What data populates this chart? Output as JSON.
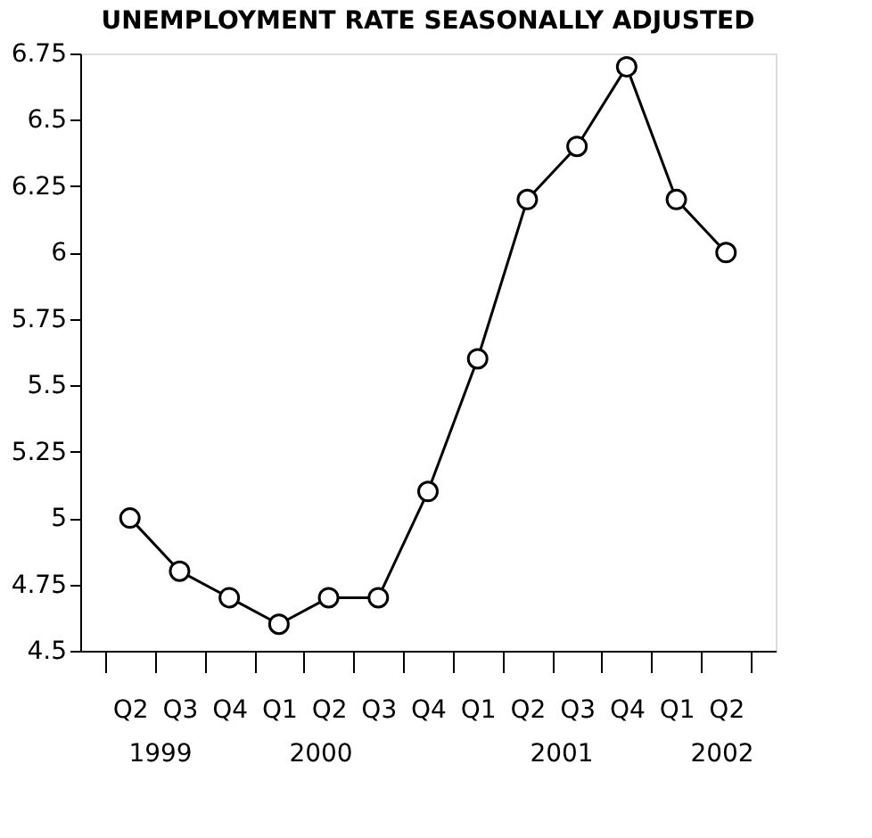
{
  "chart_data": {
    "type": "line",
    "title": "UNEMPLOYMENT RATE SEASONALLY ADJUSTED",
    "categories": [
      "Q2",
      "Q3",
      "Q4",
      "Q1",
      "Q2",
      "Q3",
      "Q4",
      "Q1",
      "Q2",
      "Q3",
      "Q4",
      "Q1",
      "Q2"
    ],
    "series": [
      {
        "color": "#000000",
        "values": [
          5.0,
          4.8,
          4.7,
          4.6,
          4.7,
          4.7,
          5.1,
          5.6,
          6.2,
          6.4,
          6.7,
          6.2,
          6.0
        ]
      }
    ],
    "annotations": [
      "1999",
      "2000",
      "2001",
      "2002"
    ],
    "ylim": [
      4.5,
      6.75
    ],
    "yticks": [
      4.5,
      4.75,
      5,
      5.25,
      5.5,
      5.75,
      6,
      6.25,
      6.5,
      6.75
    ],
    "grid": false,
    "marker": "circle",
    "line_style": "solid"
  }
}
